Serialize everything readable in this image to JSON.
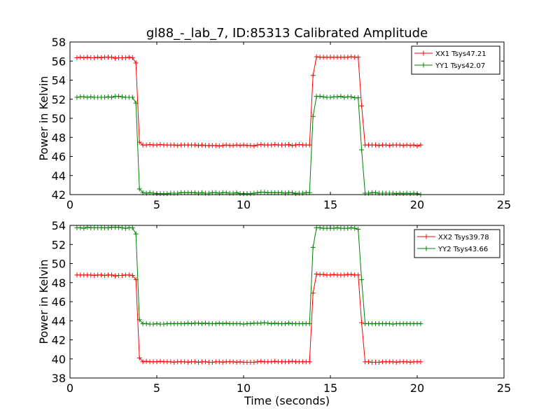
{
  "figure": {
    "title": "gl88_-_lab_7, ID:85313 Calibrated Amplitude"
  },
  "chart_data": [
    {
      "type": "line",
      "title": "gl88_-_lab_7, ID:85313 Calibrated Amplitude",
      "xlabel": "",
      "ylabel": "Power in Kelvin",
      "xlim": [
        0,
        25
      ],
      "ylim": [
        42,
        58
      ],
      "xticks": [
        0,
        5,
        10,
        15,
        20,
        25
      ],
      "yticks": [
        42,
        44,
        46,
        48,
        50,
        52,
        54,
        56,
        58
      ],
      "grid": false,
      "legend_position": "top-right",
      "x": [
        0.4,
        0.6,
        0.8,
        1.0,
        1.2,
        1.4,
        1.6,
        1.8,
        2.0,
        2.2,
        2.4,
        2.6,
        2.8,
        3.0,
        3.2,
        3.4,
        3.6,
        3.8,
        4.0,
        4.2,
        4.4,
        4.6,
        4.8,
        5.0,
        5.2,
        5.4,
        5.6,
        5.8,
        6.0,
        6.2,
        6.4,
        6.6,
        6.8,
        7.0,
        7.2,
        7.4,
        7.6,
        7.8,
        8.0,
        8.2,
        8.4,
        8.6,
        8.8,
        9.0,
        9.2,
        9.4,
        9.6,
        9.8,
        10.0,
        10.2,
        10.4,
        10.6,
        10.8,
        11.0,
        11.2,
        11.4,
        11.6,
        11.8,
        12.0,
        12.2,
        12.4,
        12.6,
        12.8,
        13.0,
        13.2,
        13.4,
        13.6,
        13.8,
        14.0,
        14.2,
        14.4,
        14.6,
        14.8,
        15.0,
        15.2,
        15.4,
        15.6,
        15.8,
        16.0,
        16.2,
        16.4,
        16.6,
        16.8,
        17.0,
        17.2,
        17.4,
        17.6,
        17.8,
        18.0,
        18.2,
        18.4,
        18.6,
        18.8,
        19.0,
        19.2,
        19.4,
        19.6,
        19.8,
        20.0,
        20.2
      ],
      "series": [
        {
          "name": "XX1 Tsys47.21",
          "color": "#ff0000",
          "values": [
            56.35,
            56.4,
            56.35,
            56.4,
            56.35,
            56.35,
            56.4,
            56.35,
            56.4,
            56.4,
            56.4,
            56.3,
            56.35,
            56.35,
            56.35,
            56.4,
            56.35,
            55.8,
            47.5,
            47.2,
            47.2,
            47.25,
            47.2,
            47.2,
            47.25,
            47.2,
            47.2,
            47.2,
            47.2,
            47.15,
            47.2,
            47.2,
            47.2,
            47.2,
            47.2,
            47.15,
            47.2,
            47.15,
            47.15,
            47.15,
            47.15,
            47.1,
            47.15,
            47.2,
            47.15,
            47.15,
            47.2,
            47.15,
            47.2,
            47.15,
            47.15,
            47.1,
            47.2,
            47.25,
            47.2,
            47.2,
            47.2,
            47.25,
            47.2,
            47.2,
            47.2,
            47.25,
            47.15,
            47.2,
            47.25,
            47.2,
            47.2,
            47.2,
            54.5,
            56.45,
            56.4,
            56.4,
            56.4,
            56.4,
            56.4,
            56.4,
            56.4,
            56.4,
            56.4,
            56.45,
            56.4,
            56.4,
            51.3,
            47.2,
            47.2,
            47.2,
            47.2,
            47.15,
            47.2,
            47.2,
            47.15,
            47.2,
            47.2,
            47.2,
            47.15,
            47.2,
            47.15,
            47.2,
            47.1,
            47.2
          ]
        },
        {
          "name": "YY1 Tsys42.07",
          "color": "#008000",
          "values": [
            52.2,
            52.25,
            52.25,
            52.2,
            52.25,
            52.2,
            52.2,
            52.2,
            52.2,
            52.25,
            52.2,
            52.3,
            52.3,
            52.25,
            52.2,
            52.2,
            52.2,
            51.6,
            42.6,
            42.2,
            42.15,
            42.2,
            42.15,
            42.1,
            42.1,
            42.1,
            42.1,
            42.15,
            42.15,
            42.15,
            42.2,
            42.2,
            42.2,
            42.2,
            42.2,
            42.15,
            42.2,
            42.15,
            42.15,
            42.2,
            42.2,
            42.15,
            42.2,
            42.2,
            42.15,
            42.15,
            42.2,
            42.1,
            42.1,
            42.1,
            42.1,
            42.15,
            42.2,
            42.25,
            42.25,
            42.2,
            42.2,
            42.2,
            42.2,
            42.2,
            42.15,
            42.2,
            42.2,
            42.1,
            42.15,
            42.15,
            42.2,
            42.2,
            50.2,
            52.3,
            52.3,
            52.25,
            52.2,
            52.2,
            52.25,
            52.25,
            52.3,
            52.2,
            52.25,
            52.25,
            52.15,
            52.15,
            46.7,
            42.15,
            42.15,
            42.2,
            42.2,
            42.15,
            42.15,
            42.15,
            42.15,
            42.15,
            42.1,
            42.15,
            42.1,
            42.15,
            42.1,
            42.15,
            42.1,
            42.0
          ]
        }
      ]
    },
    {
      "type": "line",
      "title": "",
      "xlabel": "Time (seconds)",
      "ylabel": "Power in Kelvin",
      "xlim": [
        0,
        25
      ],
      "ylim": [
        38,
        54
      ],
      "xticks": [
        0,
        5,
        10,
        15,
        20,
        25
      ],
      "yticks": [
        38,
        40,
        42,
        44,
        46,
        48,
        50,
        52,
        54
      ],
      "grid": false,
      "legend_position": "top-right",
      "x": [
        0.4,
        0.6,
        0.8,
        1.0,
        1.2,
        1.4,
        1.6,
        1.8,
        2.0,
        2.2,
        2.4,
        2.6,
        2.8,
        3.0,
        3.2,
        3.4,
        3.6,
        3.8,
        4.0,
        4.2,
        4.4,
        4.6,
        4.8,
        5.0,
        5.2,
        5.4,
        5.6,
        5.8,
        6.0,
        6.2,
        6.4,
        6.6,
        6.8,
        7.0,
        7.2,
        7.4,
        7.6,
        7.8,
        8.0,
        8.2,
        8.4,
        8.6,
        8.8,
        9.0,
        9.2,
        9.4,
        9.6,
        9.8,
        10.0,
        10.2,
        10.4,
        10.6,
        10.8,
        11.0,
        11.2,
        11.4,
        11.6,
        11.8,
        12.0,
        12.2,
        12.4,
        12.6,
        12.8,
        13.0,
        13.2,
        13.4,
        13.6,
        13.8,
        14.0,
        14.2,
        14.4,
        14.6,
        14.8,
        15.0,
        15.2,
        15.4,
        15.6,
        15.8,
        16.0,
        16.2,
        16.4,
        16.6,
        16.8,
        17.0,
        17.2,
        17.4,
        17.6,
        17.8,
        18.0,
        18.2,
        18.4,
        18.6,
        18.8,
        19.0,
        19.2,
        19.4,
        19.6,
        19.8,
        20.0,
        20.2
      ],
      "series": [
        {
          "name": "XX2 Tsys39.78",
          "color": "#ff0000",
          "values": [
            48.8,
            48.8,
            48.8,
            48.8,
            48.8,
            48.75,
            48.8,
            48.8,
            48.75,
            48.8,
            48.8,
            48.7,
            48.75,
            48.75,
            48.8,
            48.8,
            48.75,
            48.3,
            40.1,
            39.7,
            39.75,
            39.7,
            39.7,
            39.7,
            39.75,
            39.7,
            39.7,
            39.7,
            39.65,
            39.7,
            39.7,
            39.7,
            39.65,
            39.7,
            39.7,
            39.65,
            39.7,
            39.7,
            39.65,
            39.65,
            39.7,
            39.7,
            39.65,
            39.7,
            39.7,
            39.7,
            39.65,
            39.7,
            39.65,
            39.65,
            39.65,
            39.65,
            39.7,
            39.75,
            39.7,
            39.7,
            39.7,
            39.75,
            39.7,
            39.7,
            39.7,
            39.7,
            39.75,
            39.7,
            39.7,
            39.7,
            39.7,
            39.7,
            46.9,
            48.9,
            48.85,
            48.85,
            48.8,
            48.8,
            48.85,
            48.8,
            48.8,
            48.8,
            48.85,
            48.85,
            48.8,
            48.8,
            43.8,
            39.7,
            39.7,
            39.65,
            39.65,
            39.65,
            39.7,
            39.7,
            39.7,
            39.7,
            39.65,
            39.7,
            39.7,
            39.7,
            39.65,
            39.7,
            39.7,
            39.7
          ]
        },
        {
          "name": "YY2 Tsys43.66",
          "color": "#008000",
          "values": [
            53.75,
            53.75,
            53.7,
            53.8,
            53.75,
            53.75,
            53.75,
            53.75,
            53.75,
            53.75,
            53.8,
            53.8,
            53.8,
            53.75,
            53.7,
            53.75,
            53.75,
            53.1,
            44.1,
            43.7,
            43.7,
            43.65,
            43.65,
            43.7,
            43.65,
            43.65,
            43.7,
            43.7,
            43.7,
            43.7,
            43.7,
            43.7,
            43.75,
            43.7,
            43.75,
            43.75,
            43.7,
            43.75,
            43.7,
            43.7,
            43.7,
            43.75,
            43.7,
            43.75,
            43.7,
            43.7,
            43.7,
            43.7,
            43.65,
            43.7,
            43.7,
            43.75,
            43.75,
            43.75,
            43.8,
            43.75,
            43.7,
            43.75,
            43.7,
            43.7,
            43.7,
            43.75,
            43.7,
            43.7,
            43.7,
            43.7,
            43.7,
            43.7,
            51.7,
            53.75,
            53.75,
            53.7,
            53.7,
            53.7,
            53.7,
            53.75,
            53.7,
            53.7,
            53.7,
            53.75,
            53.7,
            53.6,
            48.3,
            43.7,
            43.7,
            43.7,
            43.7,
            43.7,
            43.7,
            43.7,
            43.7,
            43.65,
            43.7,
            43.7,
            43.7,
            43.7,
            43.7,
            43.7,
            43.7,
            43.7
          ]
        }
      ]
    }
  ]
}
